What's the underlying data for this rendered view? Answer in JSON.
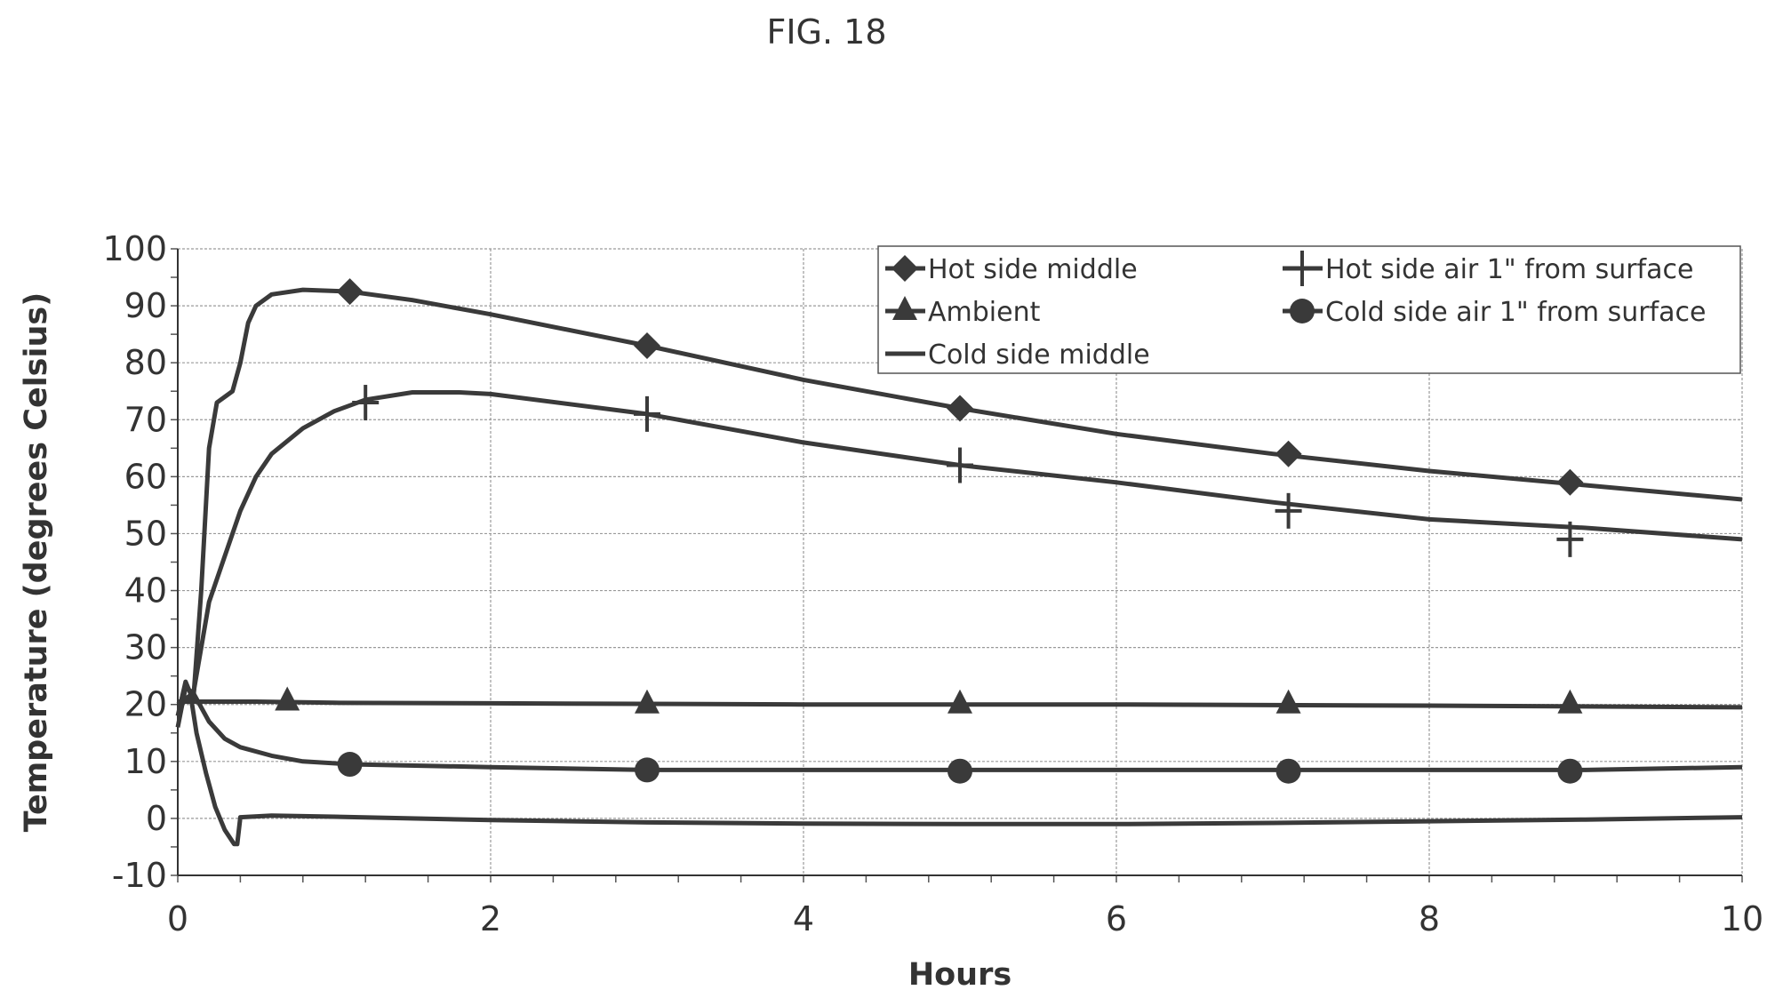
{
  "figure_label": "FIG. 18",
  "chart_data": {
    "type": "line",
    "xlabel": "Hours",
    "ylabel": "Temperature (degrees Celsius)",
    "xlim": [
      0,
      10
    ],
    "ylim": [
      -10,
      100
    ],
    "xticks": [
      0,
      2,
      4,
      6,
      8,
      10
    ],
    "yticks": [
      -10,
      0,
      10,
      20,
      30,
      40,
      50,
      60,
      70,
      80,
      90,
      100
    ],
    "grid": true,
    "legend_position": "top-right",
    "series": [
      {
        "name": "Hot side middle",
        "marker": "diamond",
        "line": [
          [
            0,
            20
          ],
          [
            0.1,
            21
          ],
          [
            0.15,
            40
          ],
          [
            0.2,
            65
          ],
          [
            0.25,
            73
          ],
          [
            0.35,
            75
          ],
          [
            0.4,
            80
          ],
          [
            0.45,
            87
          ],
          [
            0.5,
            90
          ],
          [
            0.6,
            92
          ],
          [
            0.8,
            92.8
          ],
          [
            1.1,
            92.5
          ],
          [
            1.5,
            91
          ],
          [
            2,
            88.5
          ],
          [
            3,
            83
          ],
          [
            4,
            77
          ],
          [
            5,
            72
          ],
          [
            6,
            67.5
          ],
          [
            7,
            64
          ],
          [
            8,
            61
          ],
          [
            9,
            58.5
          ],
          [
            10,
            56
          ]
        ],
        "markers": [
          [
            1.1,
            92.5
          ],
          [
            3.0,
            83
          ],
          [
            5.0,
            72
          ],
          [
            7.1,
            64
          ],
          [
            8.9,
            59
          ]
        ]
      },
      {
        "name": "Hot side air 1\" from surface",
        "marker": "plus",
        "line": [
          [
            0,
            20
          ],
          [
            0.1,
            22
          ],
          [
            0.2,
            38
          ],
          [
            0.3,
            46
          ],
          [
            0.4,
            54
          ],
          [
            0.5,
            60
          ],
          [
            0.6,
            64
          ],
          [
            0.8,
            68.5
          ],
          [
            1.0,
            71.5
          ],
          [
            1.2,
            73.5
          ],
          [
            1.5,
            74.8
          ],
          [
            1.8,
            74.8
          ],
          [
            2,
            74.5
          ],
          [
            3,
            71
          ],
          [
            4,
            66
          ],
          [
            5,
            62
          ],
          [
            6,
            59
          ],
          [
            7,
            55.5
          ],
          [
            8,
            52.5
          ],
          [
            9,
            51
          ],
          [
            10,
            49
          ]
        ],
        "markers": [
          [
            1.2,
            73
          ],
          [
            3.0,
            71
          ],
          [
            5.0,
            62
          ],
          [
            7.1,
            54
          ],
          [
            8.9,
            49
          ]
        ]
      },
      {
        "name": "Ambient",
        "marker": "triangle",
        "line": [
          [
            0,
            20.5
          ],
          [
            0.5,
            20.5
          ],
          [
            1,
            20.3
          ],
          [
            2,
            20.2
          ],
          [
            4,
            20
          ],
          [
            6,
            20
          ],
          [
            8,
            19.8
          ],
          [
            10,
            19.5
          ]
        ],
        "markers": [
          [
            0.7,
            20.5
          ],
          [
            3.0,
            20
          ],
          [
            5.0,
            20
          ],
          [
            7.1,
            20
          ],
          [
            8.9,
            20
          ]
        ]
      },
      {
        "name": "Cold side air 1\" from surface",
        "marker": "circle",
        "line": [
          [
            0,
            16
          ],
          [
            0.05,
            23
          ],
          [
            0.1,
            22
          ],
          [
            0.2,
            17
          ],
          [
            0.3,
            14
          ],
          [
            0.4,
            12.5
          ],
          [
            0.6,
            11
          ],
          [
            0.8,
            10
          ],
          [
            1.1,
            9.5
          ],
          [
            2,
            9
          ],
          [
            3,
            8.5
          ],
          [
            4,
            8.5
          ],
          [
            5,
            8.5
          ],
          [
            6,
            8.5
          ],
          [
            7,
            8.5
          ],
          [
            8,
            8.5
          ],
          [
            9,
            8.5
          ],
          [
            10,
            9
          ]
        ],
        "markers": [
          [
            1.1,
            9.5
          ],
          [
            3.0,
            8.5
          ],
          [
            5.0,
            8.3
          ],
          [
            7.1,
            8.3
          ],
          [
            8.9,
            8.3
          ]
        ]
      },
      {
        "name": "Cold side middle",
        "marker": "none",
        "line": [
          [
            0,
            18
          ],
          [
            0.05,
            24
          ],
          [
            0.08,
            22
          ],
          [
            0.12,
            15
          ],
          [
            0.18,
            8
          ],
          [
            0.24,
            2
          ],
          [
            0.3,
            -2
          ],
          [
            0.36,
            -4.5
          ],
          [
            0.38,
            -4.5
          ],
          [
            0.4,
            0.2
          ],
          [
            0.6,
            0.5
          ],
          [
            1,
            0.3
          ],
          [
            2,
            -0.3
          ],
          [
            3,
            -0.7
          ],
          [
            4,
            -0.9
          ],
          [
            5,
            -1
          ],
          [
            6,
            -1
          ],
          [
            7,
            -0.8
          ],
          [
            8,
            -0.5
          ],
          [
            9,
            -0.2
          ],
          [
            10,
            0.2
          ]
        ],
        "markers": []
      }
    ]
  }
}
